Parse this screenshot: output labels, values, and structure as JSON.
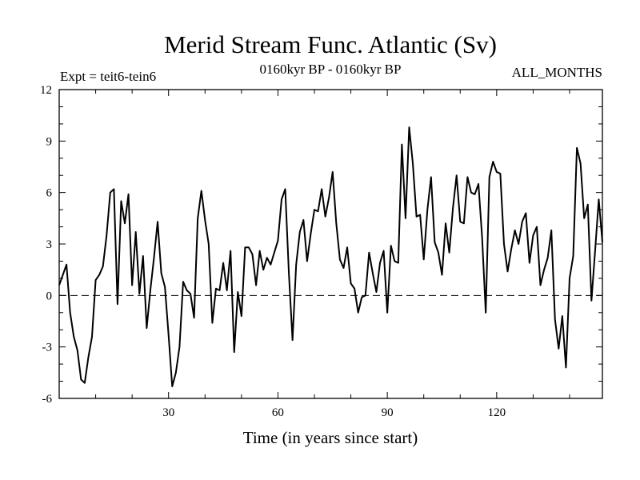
{
  "chart_data": {
    "type": "line",
    "title": "Merid Stream Func. Atlantic (Sv)",
    "subtitle_left": "Expt = teit6-tein6",
    "subtitle_center": "0160kyr BP - 0160kyr BP",
    "subtitle_right": "ALL_MONTHS",
    "xlabel": "Time (in years since start)",
    "ylabel": "",
    "xlim": [
      0,
      149
    ],
    "ylim": [
      -6,
      12
    ],
    "x_ticks": [
      30,
      60,
      90,
      120
    ],
    "x_minor_ticks": [
      10,
      20,
      40,
      50,
      70,
      80,
      100,
      110,
      130,
      140
    ],
    "y_ticks": [
      -6,
      -3,
      0,
      3,
      6,
      9,
      12
    ],
    "reference_line": {
      "y": 0,
      "style": "dashed"
    },
    "series": [
      {
        "name": "Merid Stream Func. Atlantic",
        "x": [
          0,
          1,
          2,
          3,
          4,
          5,
          6,
          7,
          8,
          9,
          10,
          11,
          12,
          13,
          14,
          15,
          16,
          17,
          18,
          19,
          20,
          21,
          22,
          23,
          24,
          25,
          26,
          27,
          28,
          29,
          30,
          31,
          32,
          33,
          34,
          35,
          36,
          37,
          38,
          39,
          40,
          41,
          42,
          43,
          44,
          45,
          46,
          47,
          48,
          49,
          50,
          51,
          52,
          53,
          54,
          55,
          56,
          57,
          58,
          59,
          60,
          61,
          62,
          63,
          64,
          65,
          66,
          67,
          68,
          69,
          70,
          71,
          72,
          73,
          74,
          75,
          76,
          77,
          78,
          79,
          80,
          81,
          82,
          83,
          84,
          85,
          86,
          87,
          88,
          89,
          90,
          91,
          92,
          93,
          94,
          95,
          96,
          97,
          98,
          99,
          100,
          101,
          102,
          103,
          104,
          105,
          106,
          107,
          108,
          109,
          110,
          111,
          112,
          113,
          114,
          115,
          116,
          117,
          118,
          119,
          120,
          121,
          122,
          123,
          124,
          125,
          126,
          127,
          128,
          129,
          130,
          131,
          132,
          133,
          134,
          135,
          136,
          137,
          138,
          139,
          140,
          141,
          142,
          143,
          144,
          145,
          146,
          147,
          148,
          149
        ],
        "values": [
          0.6,
          1.2,
          1.8,
          -1.0,
          -2.4,
          -3.2,
          -4.9,
          -5.1,
          -3.6,
          -2.4,
          0.9,
          1.2,
          1.7,
          3.5,
          6.0,
          6.2,
          -0.5,
          5.5,
          4.2,
          5.9,
          0.6,
          3.7,
          0.1,
          2.3,
          -1.9,
          0.3,
          2.2,
          4.3,
          1.3,
          0.5,
          -2.3,
          -5.3,
          -4.5,
          -3.0,
          0.8,
          0.3,
          0.1,
          -1.3,
          4.5,
          6.1,
          4.4,
          3.0,
          -1.6,
          0.4,
          0.3,
          1.9,
          0.3,
          2.6,
          -3.3,
          0.2,
          -1.2,
          2.8,
          2.8,
          2.4,
          0.6,
          2.6,
          1.5,
          2.2,
          1.8,
          2.5,
          3.2,
          5.6,
          6.2,
          1.3,
          -2.6,
          1.8,
          3.7,
          4.4,
          2.0,
          3.6,
          5.0,
          4.9,
          6.2,
          4.6,
          5.7,
          7.2,
          4.2,
          2.1,
          1.6,
          2.8,
          0.7,
          0.4,
          -1.0,
          -0.1,
          0.0,
          2.5,
          1.3,
          0.2,
          1.9,
          2.6,
          -1.0,
          2.9,
          2.0,
          1.9,
          8.8,
          4.5,
          9.8,
          7.7,
          4.6,
          4.7,
          2.1,
          5.0,
          6.9,
          3.1,
          2.5,
          1.2,
          4.2,
          2.5,
          5.1,
          7.0,
          4.3,
          4.2,
          6.9,
          6.0,
          5.9,
          6.5,
          3.4,
          -1.0,
          6.9,
          7.8,
          7.2,
          7.1,
          3.0,
          1.4,
          2.7,
          3.8,
          3.0,
          4.3,
          4.8,
          1.9,
          3.5,
          4.0,
          0.6,
          1.5,
          2.2,
          3.8,
          -1.4,
          -3.1,
          -1.2,
          -4.2,
          1.0,
          2.3,
          8.6,
          7.7,
          4.5,
          5.3,
          -0.3,
          2.6,
          5.6,
          3.1
        ]
      }
    ]
  }
}
